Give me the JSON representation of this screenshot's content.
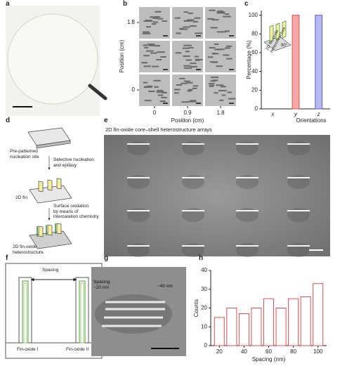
{
  "panel_labels": [
    "a",
    "b",
    "c",
    "d",
    "e",
    "f",
    "g",
    "h"
  ],
  "panel_b": {
    "xlabel": "Position (cm)",
    "ylabel": "Position (cm)",
    "xticks": [
      0,
      0.9,
      1.8
    ],
    "yticks": [
      1.8,
      0
    ]
  },
  "panel_d": {
    "step1": "Pre-patterned\nnucleation site",
    "arrow1": "Selective nucleation\nand epitaxy",
    "step2": "2D fin",
    "arrow2": "Surface oxidation\nby means of\nintercalation chemistry",
    "step3": "2D fin-oxide\nheterostructure"
  },
  "panel_e": {
    "title": "2D fin-oxide core–shell heterostructure arrays"
  },
  "panel_f": {
    "spacing": "Spacing",
    "left": "Fin-oxide I",
    "right": "Fin-oxide II"
  },
  "panel_g": {
    "spacing": "Spacing\n~20 nm",
    "width": "~40 nm"
  },
  "chart_data": [
    {
      "type": "bar",
      "categories": [
        "x",
        "y",
        "z"
      ],
      "values": [
        0,
        100,
        100
      ],
      "colors": [
        "#f5a8a8",
        "#f5a8a8",
        "#b8b8f0"
      ],
      "edgecolors": [
        "#e05050",
        "#e05050",
        "#6060d0"
      ],
      "ylim": [
        0,
        105
      ],
      "yticks": [
        0,
        20,
        40,
        60,
        80,
        100
      ],
      "xlabel": "Orientations",
      "ylabel": "Percentage (%)",
      "annotations": [
        "2D fin-oxide\nheterostructure",
        "90°"
      ]
    },
    {
      "type": "bar",
      "x": [
        20,
        30,
        40,
        50,
        60,
        70,
        80,
        90,
        100
      ],
      "values": [
        15,
        20,
        17,
        20,
        25,
        20,
        25,
        26,
        33
      ],
      "color": "#e05050",
      "xlim": [
        13,
        107
      ],
      "ylim": [
        0,
        40
      ],
      "xticks": [
        20,
        40,
        60,
        80,
        100
      ],
      "yticks": [
        0,
        10,
        20,
        30,
        40
      ],
      "xlabel": "Spacing (nm)",
      "ylabel": "Counts"
    }
  ]
}
